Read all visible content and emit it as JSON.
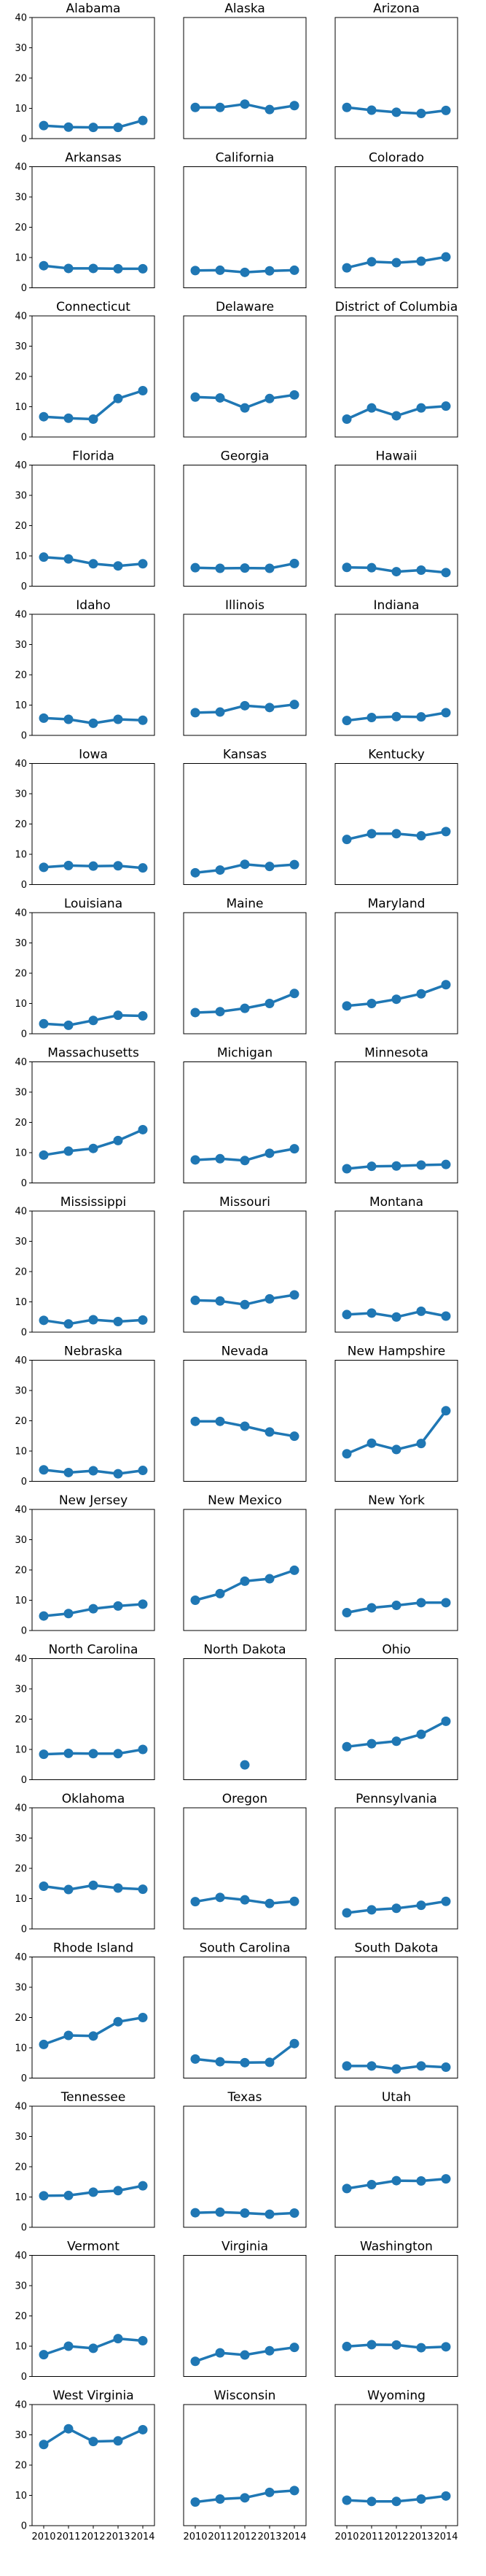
{
  "chart_data": {
    "type": "line",
    "layout": "small-multiples",
    "columns": 3,
    "x": [
      2010,
      2011,
      2012,
      2013,
      2014
    ],
    "x_tick_labels": [
      "2010",
      "2011",
      "2012",
      "2013",
      "2014"
    ],
    "y_ticks": [
      0,
      10,
      20,
      30,
      40
    ],
    "y_tick_labels": [
      "0",
      "10",
      "20",
      "30",
      "40"
    ],
    "ylim": [
      0,
      40
    ],
    "grid": false,
    "color": "#1f77b4",
    "panels": [
      {
        "title": "Alabama",
        "values": [
          4.3,
          3.8,
          3.7,
          3.7,
          6.0
        ]
      },
      {
        "title": "Alaska",
        "values": [
          10.3,
          10.3,
          11.4,
          9.6,
          10.9
        ]
      },
      {
        "title": "Arizona",
        "values": [
          10.3,
          9.4,
          8.7,
          8.3,
          9.3
        ]
      },
      {
        "title": "Arkansas",
        "values": [
          7.3,
          6.4,
          6.4,
          6.3,
          6.3
        ]
      },
      {
        "title": "California",
        "values": [
          5.7,
          5.8,
          5.1,
          5.6,
          5.8
        ]
      },
      {
        "title": "Colorado",
        "values": [
          6.6,
          8.6,
          8.3,
          8.8,
          10.2
        ]
      },
      {
        "title": "Connecticut",
        "values": [
          6.7,
          6.2,
          5.9,
          12.7,
          15.3
        ]
      },
      {
        "title": "Delaware",
        "values": [
          13.2,
          12.9,
          9.6,
          12.7,
          13.9
        ]
      },
      {
        "title": "District of Columbia",
        "values": [
          5.9,
          9.6,
          7.0,
          9.6,
          10.2
        ]
      },
      {
        "title": "Florida",
        "values": [
          9.6,
          9.0,
          7.4,
          6.7,
          7.4
        ]
      },
      {
        "title": "Georgia",
        "values": [
          6.1,
          5.9,
          6.0,
          5.9,
          7.5
        ]
      },
      {
        "title": "Hawaii",
        "values": [
          6.2,
          6.1,
          4.8,
          5.3,
          4.5
        ]
      },
      {
        "title": "Idaho",
        "values": [
          5.7,
          5.3,
          4.0,
          5.3,
          5.0
        ]
      },
      {
        "title": "Illinois",
        "values": [
          7.5,
          7.7,
          9.8,
          9.2,
          10.2
        ]
      },
      {
        "title": "Indiana",
        "values": [
          4.9,
          5.9,
          6.2,
          6.1,
          7.5
        ]
      },
      {
        "title": "Iowa",
        "values": [
          5.7,
          6.3,
          6.1,
          6.2,
          5.5
        ]
      },
      {
        "title": "Kansas",
        "values": [
          3.9,
          4.8,
          6.7,
          6.0,
          6.6
        ]
      },
      {
        "title": "Kentucky",
        "values": [
          14.9,
          16.8,
          16.8,
          16.1,
          17.5
        ]
      },
      {
        "title": "Louisiana",
        "values": [
          3.3,
          2.8,
          4.4,
          6.1,
          5.9
        ]
      },
      {
        "title": "Maine",
        "values": [
          7.0,
          7.3,
          8.4,
          10.0,
          13.3
        ]
      },
      {
        "title": "Maryland",
        "values": [
          9.2,
          10.0,
          11.4,
          13.2,
          16.2
        ]
      },
      {
        "title": "Massachusetts",
        "values": [
          9.2,
          10.5,
          11.4,
          14.0,
          17.6
        ]
      },
      {
        "title": "Michigan",
        "values": [
          7.6,
          8.0,
          7.4,
          9.8,
          11.3
        ]
      },
      {
        "title": "Minnesota",
        "values": [
          4.7,
          5.5,
          5.6,
          5.9,
          6.1
        ]
      },
      {
        "title": "Mississippi",
        "values": [
          3.9,
          2.7,
          4.1,
          3.5,
          4.0
        ]
      },
      {
        "title": "Missouri",
        "values": [
          10.5,
          10.3,
          9.1,
          11.0,
          12.3
        ]
      },
      {
        "title": "Montana",
        "values": [
          5.8,
          6.3,
          5.0,
          6.9,
          5.3
        ]
      },
      {
        "title": "Nebraska",
        "values": [
          3.8,
          2.9,
          3.5,
          2.5,
          3.6
        ]
      },
      {
        "title": "Nevada",
        "values": [
          19.8,
          19.8,
          18.2,
          16.3,
          14.9
        ]
      },
      {
        "title": "New Hampshire",
        "values": [
          9.1,
          12.6,
          10.5,
          12.5,
          23.3
        ]
      },
      {
        "title": "New Jersey",
        "values": [
          4.8,
          5.6,
          7.2,
          8.1,
          8.7
        ]
      },
      {
        "title": "New Mexico",
        "values": [
          10.0,
          12.2,
          16.3,
          17.1,
          19.9
        ]
      },
      {
        "title": "New York",
        "values": [
          5.9,
          7.5,
          8.3,
          9.2,
          9.2
        ]
      },
      {
        "title": "North Carolina",
        "values": [
          8.4,
          8.7,
          8.6,
          8.6,
          10.0
        ]
      },
      {
        "title": "North Dakota",
        "values": [
          null,
          null,
          4.9,
          null,
          null
        ]
      },
      {
        "title": "Ohio",
        "values": [
          10.9,
          11.9,
          12.7,
          15.0,
          19.3
        ]
      },
      {
        "title": "Oklahoma",
        "values": [
          14.1,
          13.0,
          14.4,
          13.5,
          13.1
        ]
      },
      {
        "title": "Oregon",
        "values": [
          9.0,
          10.4,
          9.6,
          8.4,
          9.1
        ]
      },
      {
        "title": "Pennsylvania",
        "values": [
          5.3,
          6.3,
          6.8,
          7.8,
          9.1
        ]
      },
      {
        "title": "Rhode Island",
        "values": [
          11.1,
          14.1,
          13.9,
          18.6,
          20.0
        ]
      },
      {
        "title": "South Carolina",
        "values": [
          6.3,
          5.4,
          5.1,
          5.2,
          11.4
        ]
      },
      {
        "title": "South Dakota",
        "values": [
          4.0,
          4.0,
          3.0,
          4.0,
          3.6
        ]
      },
      {
        "title": "Tennessee",
        "values": [
          10.4,
          10.5,
          11.6,
          12.1,
          13.7
        ]
      },
      {
        "title": "Texas",
        "values": [
          4.8,
          5.0,
          4.7,
          4.3,
          4.7
        ]
      },
      {
        "title": "Utah",
        "values": [
          12.8,
          14.1,
          15.4,
          15.3,
          16.0
        ]
      },
      {
        "title": "Vermont",
        "values": [
          7.2,
          10.0,
          9.3,
          12.5,
          11.8
        ]
      },
      {
        "title": "Virginia",
        "values": [
          5.0,
          7.8,
          7.1,
          8.5,
          9.6
        ]
      },
      {
        "title": "Washington",
        "values": [
          9.9,
          10.5,
          10.4,
          9.5,
          9.8
        ]
      },
      {
        "title": "West Virginia",
        "values": [
          26.8,
          32.0,
          27.8,
          28.0,
          31.7
        ]
      },
      {
        "title": "Wisconsin",
        "values": [
          7.8,
          8.8,
          9.2,
          11.0,
          11.6
        ]
      },
      {
        "title": "Wyoming",
        "values": [
          8.4,
          8.0,
          8.0,
          8.8,
          9.8
        ]
      }
    ]
  }
}
